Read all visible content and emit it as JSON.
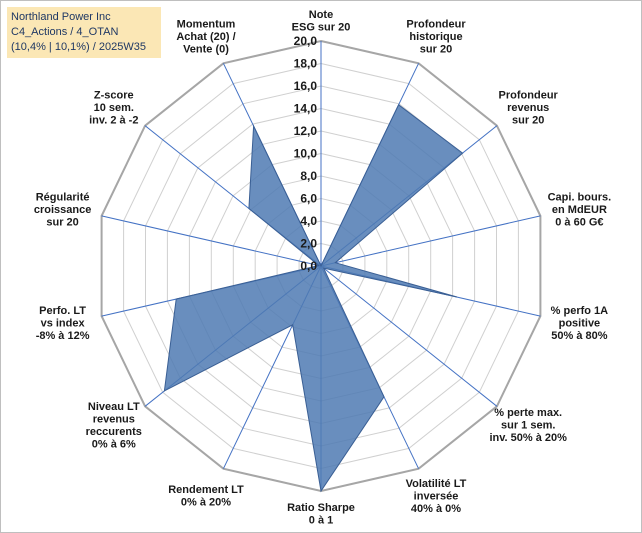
{
  "header": {
    "line1": "Northland Power Inc",
    "line2": "C4_Actions / 4_OTAN",
    "line3": "(10,4% | 10,1%) / 2025W35"
  },
  "chart_data": {
    "type": "radar",
    "rlim": [
      0,
      20
    ],
    "rticks": [
      "0,0",
      "2,0",
      "4,0",
      "6,0",
      "8,0",
      "10,0",
      "12,0",
      "14,0",
      "16,0",
      "18,0",
      "20,0"
    ],
    "grid": true,
    "legend": "none",
    "series_color": "#4f7ab3",
    "axes": [
      {
        "label": [
          "Note",
          "ESG sur 20"
        ]
      },
      {
        "label": [
          "Profondeur",
          "historique",
          "sur 20"
        ]
      },
      {
        "label": [
          "Profondeur",
          "revenus",
          "sur 20"
        ]
      },
      {
        "label": [
          "Capi. bours.",
          "en MdEUR",
          "0 à 60 G€"
        ]
      },
      {
        "label": [
          "% perfo 1A",
          "positive",
          "50% à 80%"
        ]
      },
      {
        "label": [
          "% perte max.",
          "sur 1 sem.",
          "inv. 50% à 20%"
        ]
      },
      {
        "label": [
          "Volatilité LT",
          "inversée",
          "40% à 0%"
        ]
      },
      {
        "label": [
          "Ratio Sharpe",
          "0 à 1"
        ]
      },
      {
        "label": [
          "Rendement LT",
          "0% à 20%"
        ]
      },
      {
        "label": [
          "Niveau LT",
          "revenus",
          "reccurents",
          "0% à 6%"
        ]
      },
      {
        "label": [
          "Perfo. LT",
          "vs index",
          "-8% à 12%"
        ]
      },
      {
        "label": [
          "Régularité",
          "croissance",
          "sur 20"
        ]
      },
      {
        "label": [
          "Z-score",
          "10 sem.",
          "inv. 2 à -2"
        ]
      },
      {
        "label": [
          "Momentum",
          "Achat (20) /",
          "Vente (0)"
        ]
      }
    ],
    "values": [
      0,
      15.9,
      16.1,
      1.3,
      12.4,
      0.3,
      12.9,
      20,
      5.8,
      17.8,
      13.2,
      0.2,
      8.2,
      13.8
    ]
  }
}
